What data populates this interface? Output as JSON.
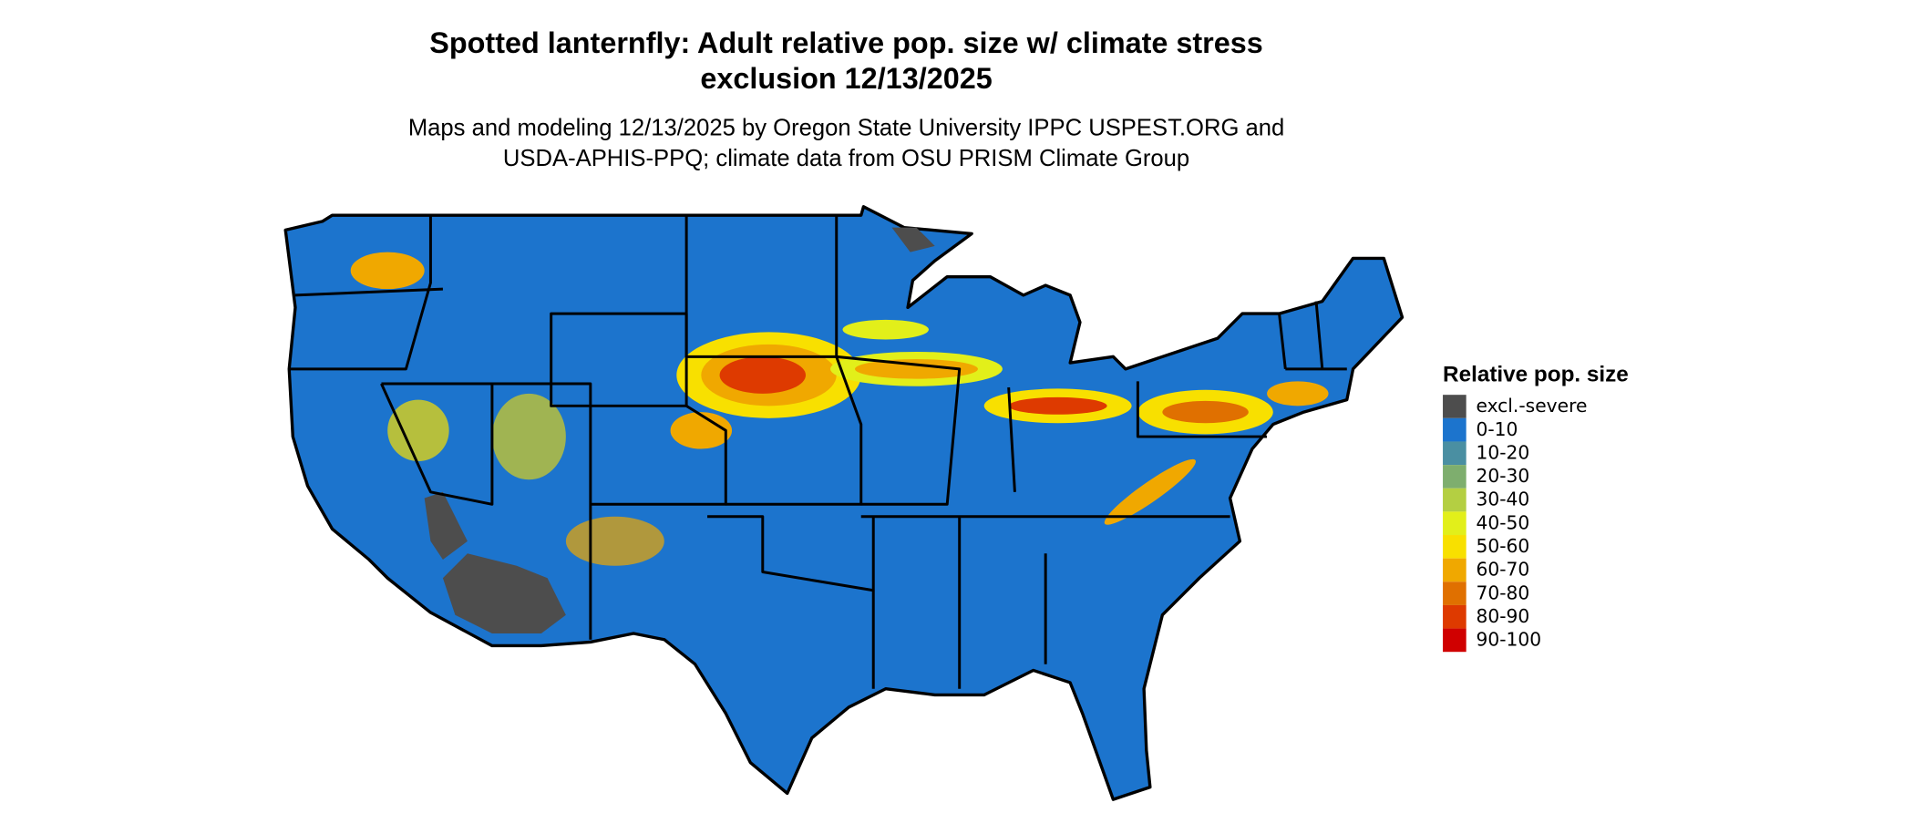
{
  "title": [
    "Spotted lanternfly: Adult relative pop. size w/ climate stress",
    "exclusion 12/13/2025"
  ],
  "subtitle": [
    "Maps and modeling 12/13/2025 by Oregon State University IPPC USPEST.ORG and",
    "USDA-APHIS-PPQ; climate data from OSU PRISM Climate Group"
  ],
  "legend": {
    "title": "Relative pop. size",
    "items": [
      {
        "label": "excl.-severe",
        "color": "#4d4d4d"
      },
      {
        "label": "0-10",
        "color": "#1c74cd"
      },
      {
        "label": "10-20",
        "color": "#4a8fa2"
      },
      {
        "label": "20-30",
        "color": "#7eae6e"
      },
      {
        "label": "30-40",
        "color": "#b4cf42"
      },
      {
        "label": "40-50",
        "color": "#e2ef1a"
      },
      {
        "label": "50-60",
        "color": "#f8e000"
      },
      {
        "label": "60-70",
        "color": "#f0a800"
      },
      {
        "label": "70-80",
        "color": "#e07000"
      },
      {
        "label": "80-90",
        "color": "#de3a00"
      },
      {
        "label": "90-100",
        "color": "#d00000"
      }
    ]
  }
}
